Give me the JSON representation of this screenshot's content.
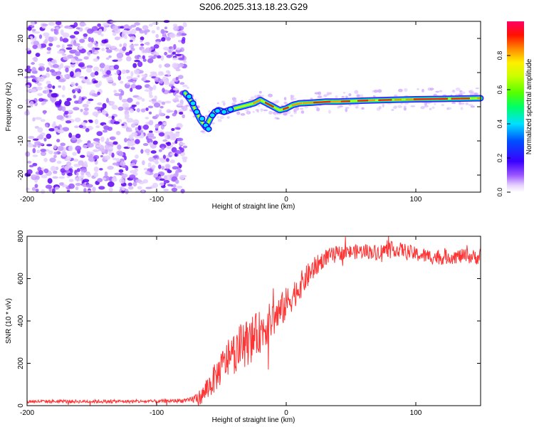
{
  "title": "S206.2025.313.18.23.G29",
  "chart_data": [
    {
      "type": "heatmap",
      "xlabel": "Height of straight line (km)",
      "ylabel": "Frequency (Hz)",
      "xlim": [
        -200,
        150
      ],
      "ylim": [
        -25,
        25
      ],
      "xticks": [
        -200,
        -100,
        0,
        100
      ],
      "yticks": [
        -20,
        -10,
        0,
        10,
        20
      ],
      "colorbar": {
        "label": "Normalized spectral amplitude",
        "range": [
          0,
          1
        ],
        "ticks": [
          0.0,
          0.2,
          0.4,
          0.6,
          0.8
        ]
      },
      "noise_region_x": [
        -200,
        -78
      ],
      "signal_ridge": {
        "x": [
          -78,
          -74,
          -70,
          -66,
          -62,
          -58,
          -55,
          -52,
          -48,
          -44,
          -40,
          -35,
          -30,
          -25,
          -20,
          -15,
          -10,
          -5,
          0,
          5,
          10,
          20,
          30,
          40,
          60,
          80,
          100,
          120,
          150
        ],
        "freq": [
          4,
          2,
          -1,
          -4,
          -6,
          -3,
          -1.5,
          -1,
          -1.5,
          -1,
          -0.5,
          0,
          0.5,
          1,
          2,
          1,
          0,
          -1,
          -0.5,
          0.5,
          1,
          1.2,
          1.5,
          1.5,
          1.8,
          2,
          2.2,
          2.3,
          2.5
        ]
      }
    },
    {
      "type": "line",
      "xlabel": "Height of straight line (km)",
      "ylabel": "SNR (10 * v/v)",
      "xlim": [
        -200,
        150
      ],
      "ylim": [
        0,
        800
      ],
      "xticks": [
        -200,
        -100,
        0,
        100
      ],
      "yticks": [
        0,
        200,
        400,
        600,
        800
      ],
      "series": [
        {
          "name": "SNR",
          "color": "#ff3333",
          "x": [
            -200,
            -150,
            -100,
            -75,
            -65,
            -60,
            -55,
            -50,
            -45,
            -40,
            -35,
            -30,
            -25,
            -20,
            -15,
            -10,
            -5,
            0,
            5,
            10,
            15,
            20,
            25,
            30,
            40,
            50,
            60,
            70,
            80,
            90,
            100,
            110,
            120,
            130,
            140,
            150
          ],
          "values": [
            20,
            20,
            20,
            25,
            45,
            90,
            130,
            180,
            220,
            250,
            280,
            300,
            320,
            350,
            380,
            410,
            440,
            480,
            520,
            560,
            600,
            640,
            670,
            700,
            720,
            725,
            730,
            725,
            740,
            735,
            715,
            705,
            700,
            705,
            705,
            700
          ],
          "amplitude": [
            8,
            8,
            8,
            10,
            40,
            60,
            70,
            80,
            90,
            100,
            110,
            110,
            110,
            100,
            95,
            90,
            85,
            80,
            70,
            65,
            60,
            55,
            45,
            40,
            35,
            35,
            35,
            35,
            35,
            35,
            35,
            35,
            35,
            35,
            35,
            35
          ]
        }
      ]
    }
  ]
}
